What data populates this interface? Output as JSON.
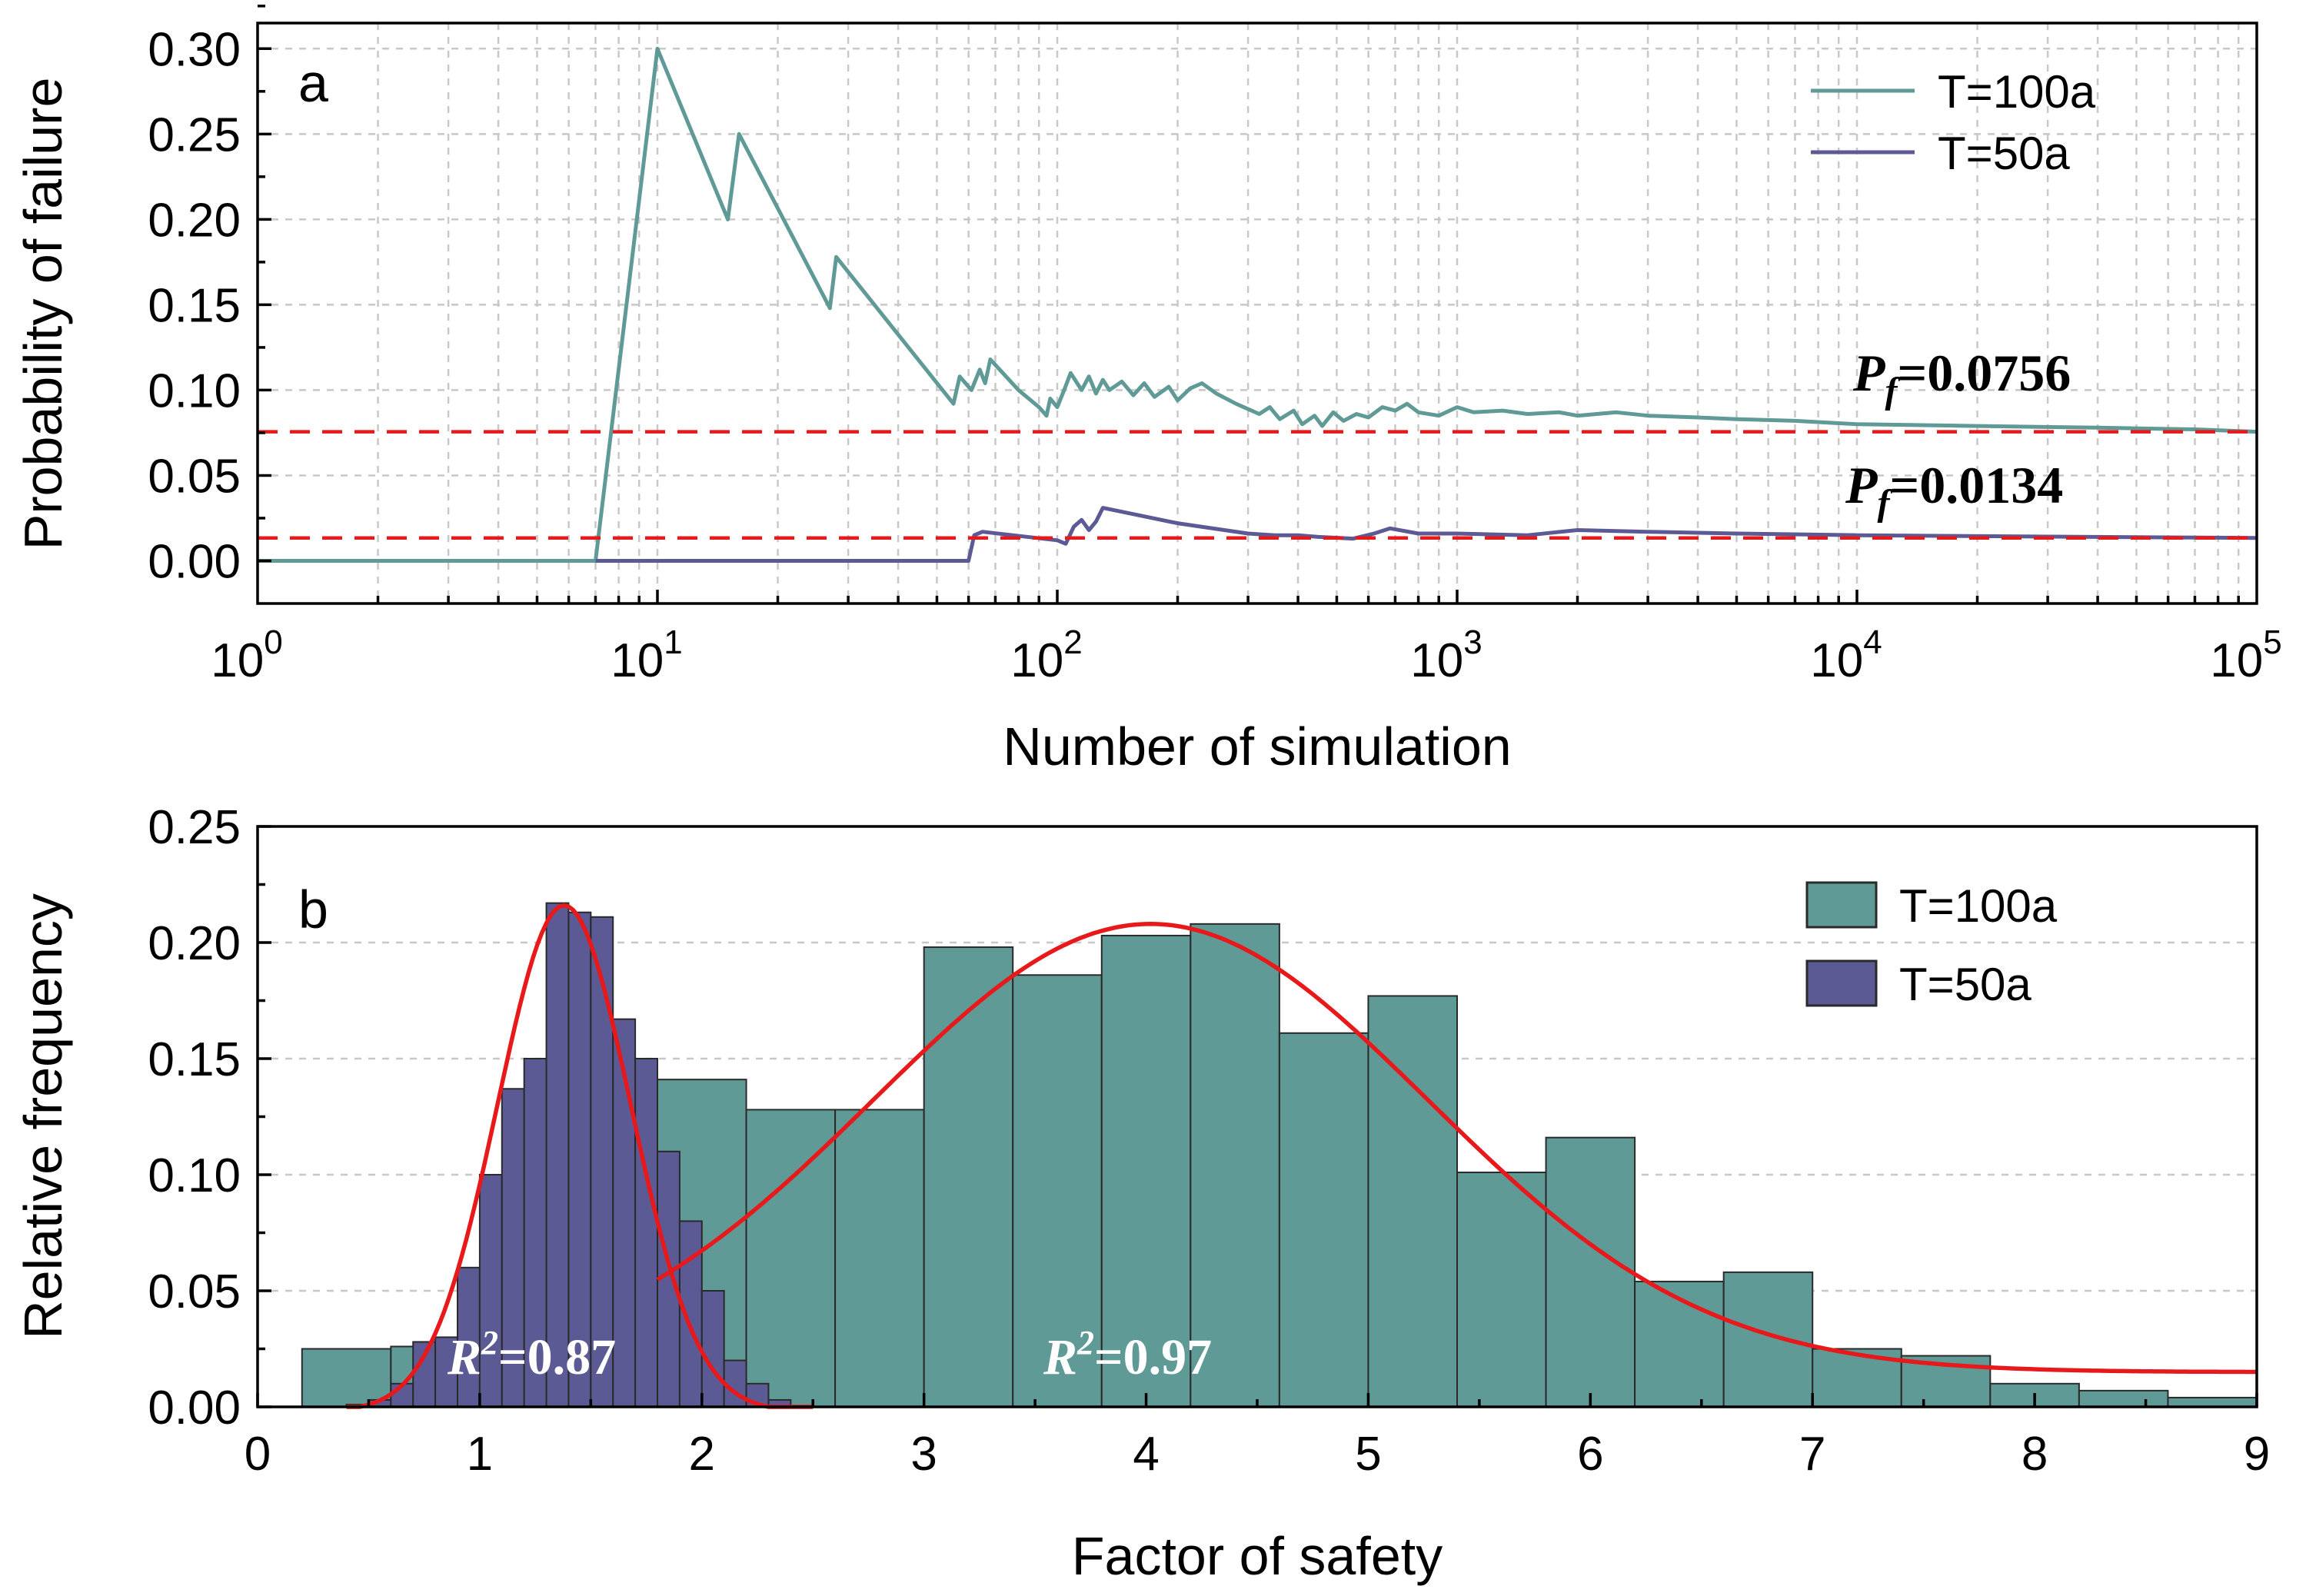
{
  "colors": {
    "series_100a": "#5f9a96",
    "series_50a": "#5c5a94",
    "fit_curve": "#e8191b",
    "reference_line": "#e8191b"
  },
  "chart_data": [
    {
      "panel": "a",
      "type": "line",
      "xscale": "log",
      "xlabel": "Number of simulation",
      "ylabel": "Probability of failure",
      "xlim": [
        1,
        100000
      ],
      "ylim": [
        -0.025,
        0.315
      ],
      "x_ticks": [
        {
          "base": "10",
          "exp": "0",
          "value": 1
        },
        {
          "base": "10",
          "exp": "1",
          "value": 10
        },
        {
          "base": "10",
          "exp": "2",
          "value": 100
        },
        {
          "base": "10",
          "exp": "3",
          "value": 1000
        },
        {
          "base": "10",
          "exp": "4",
          "value": 10000
        },
        {
          "base": "10",
          "exp": "5",
          "value": 100000
        }
      ],
      "y_ticks": [
        "0.00",
        "0.05",
        "0.10",
        "0.15",
        "0.20",
        "0.25",
        "0.30"
      ],
      "grid": true,
      "legend_position": "top-right",
      "series": [
        {
          "name": "T=100a",
          "color": "#5f9a96",
          "points": [
            [
              1,
              0
            ],
            [
              7,
              0
            ],
            [
              10,
              0.3
            ],
            [
              15,
              0.2
            ],
            [
              16,
              0.25
            ],
            [
              27,
              0.148
            ],
            [
              28,
              0.178
            ],
            [
              55,
              0.092
            ],
            [
              57,
              0.108
            ],
            [
              61,
              0.1
            ],
            [
              64,
              0.112
            ],
            [
              66,
              0.104
            ],
            [
              68,
              0.118
            ],
            [
              80,
              0.1
            ],
            [
              90,
              0.09
            ],
            [
              94,
              0.085
            ],
            [
              96,
              0.095
            ],
            [
              100,
              0.09
            ],
            [
              104,
              0.1
            ],
            [
              108,
              0.11
            ],
            [
              115,
              0.1
            ],
            [
              120,
              0.108
            ],
            [
              125,
              0.098
            ],
            [
              130,
              0.106
            ],
            [
              135,
              0.1
            ],
            [
              145,
              0.105
            ],
            [
              155,
              0.097
            ],
            [
              165,
              0.104
            ],
            [
              175,
              0.096
            ],
            [
              190,
              0.102
            ],
            [
              200,
              0.094
            ],
            [
              215,
              0.101
            ],
            [
              230,
              0.104
            ],
            [
              250,
              0.098
            ],
            [
              280,
              0.092
            ],
            [
              320,
              0.086
            ],
            [
              340,
              0.09
            ],
            [
              360,
              0.083
            ],
            [
              390,
              0.088
            ],
            [
              410,
              0.08
            ],
            [
              440,
              0.085
            ],
            [
              460,
              0.079
            ],
            [
              490,
              0.087
            ],
            [
              520,
              0.082
            ],
            [
              560,
              0.086
            ],
            [
              600,
              0.084
            ],
            [
              650,
              0.09
            ],
            [
              700,
              0.088
            ],
            [
              750,
              0.092
            ],
            [
              800,
              0.087
            ],
            [
              900,
              0.085
            ],
            [
              1000,
              0.09
            ],
            [
              1100,
              0.087
            ],
            [
              1300,
              0.088
            ],
            [
              1500,
              0.086
            ],
            [
              1800,
              0.087
            ],
            [
              2000,
              0.085
            ],
            [
              2500,
              0.087
            ],
            [
              3000,
              0.085
            ],
            [
              4000,
              0.084
            ],
            [
              5000,
              0.083
            ],
            [
              7000,
              0.082
            ],
            [
              10000,
              0.08
            ],
            [
              20000,
              0.079
            ],
            [
              40000,
              0.078
            ],
            [
              70000,
              0.077
            ],
            [
              100000,
              0.0756
            ]
          ]
        },
        {
          "name": "T=50a",
          "color": "#5c5a94",
          "points": [
            [
              7,
              0
            ],
            [
              60,
              0
            ],
            [
              62,
              0.015
            ],
            [
              65,
              0.017
            ],
            [
              100,
              0.012
            ],
            [
              105,
              0.01
            ],
            [
              110,
              0.02
            ],
            [
              115,
              0.024
            ],
            [
              120,
              0.018
            ],
            [
              125,
              0.023
            ],
            [
              130,
              0.031
            ],
            [
              200,
              0.022
            ],
            [
              300,
              0.016
            ],
            [
              350,
              0.015
            ],
            [
              400,
              0.015
            ],
            [
              450,
              0.014
            ],
            [
              550,
              0.013
            ],
            [
              620,
              0.016
            ],
            [
              680,
              0.019
            ],
            [
              800,
              0.016
            ],
            [
              1000,
              0.016
            ],
            [
              1500,
              0.015
            ],
            [
              2000,
              0.018
            ],
            [
              3000,
              0.017
            ],
            [
              5000,
              0.016
            ],
            [
              10000,
              0.015
            ],
            [
              30000,
              0.0142
            ],
            [
              100000,
              0.0134
            ]
          ]
        }
      ],
      "reference_lines": [
        {
          "y": 0.0756,
          "label_prefix": "P",
          "label_sub": "f",
          "label_value": "=0.0756"
        },
        {
          "y": 0.0134,
          "label_prefix": "P",
          "label_sub": "f",
          "label_value": "=0.0134"
        }
      ]
    },
    {
      "panel": "b",
      "type": "bar",
      "xlabel": "Factor of safety",
      "ylabel": "Relative frequency",
      "xlim": [
        0,
        9
      ],
      "ylim": [
        0,
        0.25
      ],
      "x_ticks": [
        "0",
        "1",
        "2",
        "3",
        "4",
        "5",
        "6",
        "7",
        "8",
        "9"
      ],
      "y_ticks": [
        "0.00",
        "0.05",
        "0.10",
        "0.15",
        "0.20",
        "0.25"
      ],
      "grid": true,
      "legend_position": "top-right",
      "series": [
        {
          "name": "T=100a",
          "color": "#5f9a96",
          "bin_start": 0.2,
          "bin_width": 0.4,
          "values": [
            0.025,
            0.026,
            0.027,
            0.065,
            0.141,
            0.128,
            0.128,
            0.198,
            0.186,
            0.203,
            0.208,
            0.161,
            0.177,
            0.101,
            0.116,
            0.054,
            0.058,
            0.025,
            0.022,
            0.01,
            0.007,
            0.004,
            0.0
          ]
        },
        {
          "name": "T=50a",
          "color": "#5c5a94",
          "bin_start": 0.4,
          "bin_width": 0.1,
          "values": [
            0.001,
            0.003,
            0.01,
            0.028,
            0.03,
            0.06,
            0.1,
            0.137,
            0.15,
            0.217,
            0.213,
            0.211,
            0.167,
            0.15,
            0.11,
            0.08,
            0.05,
            0.02,
            0.01,
            0.003
          ]
        }
      ],
      "fits": [
        {
          "series": "T=50a",
          "kind": "gaussian",
          "offset": -0.002,
          "amplitude": 0.218,
          "mean": 1.38,
          "sigma": 0.3,
          "x_range": [
            0.4,
            2.5
          ],
          "r2_prefix": "R",
          "r2_sup": "2",
          "r2_value": "=0.87"
        },
        {
          "series": "T=100a",
          "kind": "gaussian",
          "offset": 0.015,
          "amplitude": 0.193,
          "mean": 4.02,
          "sigma": 1.25,
          "x_range": [
            1.8,
            9
          ],
          "r2_prefix": "R",
          "r2_sup": "2",
          "r2_value": "=0.97"
        }
      ]
    }
  ]
}
